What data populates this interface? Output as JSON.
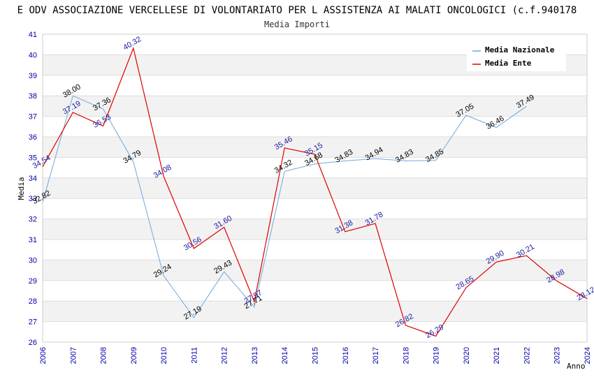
{
  "chart_data": {
    "type": "line",
    "title": "E ODV ASSOCIAZIONE VERCELLESE DI VOLONTARIATO PER L ASSISTENZA AI MALATI ONCOLOGICI (c.f.940178",
    "subtitle": "Media Importi",
    "xlabel": "Anno",
    "ylabel": "Media",
    "ylim": [
      26,
      41
    ],
    "yticks": [
      26,
      27,
      28,
      29,
      30,
      31,
      32,
      33,
      34,
      35,
      36,
      37,
      38,
      39,
      40,
      41
    ],
    "x": [
      2006,
      2007,
      2008,
      2009,
      2010,
      2011,
      2012,
      2013,
      2014,
      2015,
      2016,
      2017,
      2018,
      2019,
      2020,
      2021,
      2022,
      2023,
      2024
    ],
    "legend_position": "top-right",
    "grid": "horizontal bands",
    "series": [
      {
        "name": "Media Nazionale",
        "color": "#6fa8dc",
        "values": [
          32.82,
          38.0,
          37.36,
          34.79,
          29.24,
          27.19,
          29.43,
          27.71,
          34.32,
          34.68,
          34.83,
          34.94,
          34.83,
          34.85,
          37.05,
          36.46,
          37.49,
          null,
          null
        ]
      },
      {
        "name": "Media Ente",
        "color": "#dd0000",
        "values": [
          34.54,
          37.19,
          36.53,
          40.32,
          34.08,
          30.56,
          31.6,
          27.97,
          35.46,
          35.15,
          31.38,
          31.78,
          26.82,
          26.29,
          28.65,
          29.9,
          30.21,
          28.98,
          28.12
        ]
      }
    ]
  }
}
